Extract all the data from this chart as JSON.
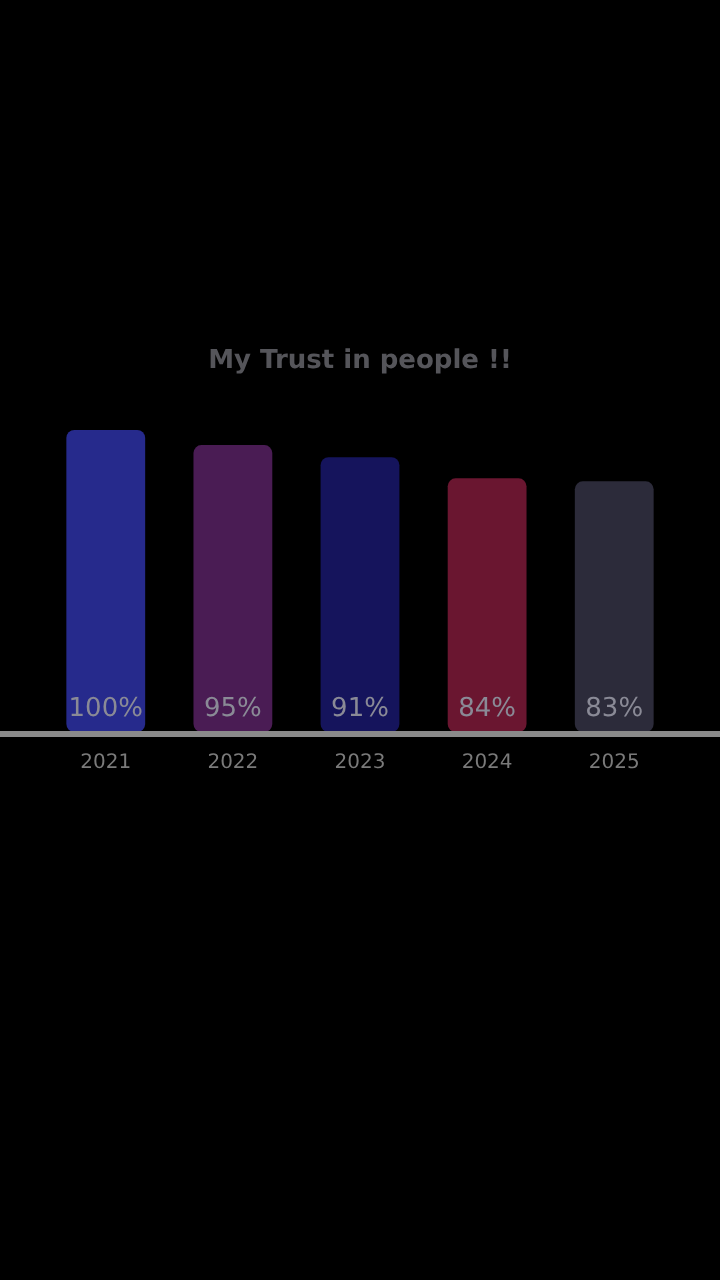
{
  "chart_data": {
    "type": "bar",
    "title": "My Trust in people !!",
    "categories": [
      "2021",
      "2022",
      "2023",
      "2024",
      "2025"
    ],
    "values": [
      100,
      95,
      91,
      84,
      83
    ],
    "value_labels": [
      "100%",
      "95%",
      "91%",
      "84%",
      "83%"
    ],
    "colors": [
      "#262a8c",
      "#4a1c54",
      "#15145c",
      "#6a1630",
      "#2c2b3a"
    ]
  }
}
